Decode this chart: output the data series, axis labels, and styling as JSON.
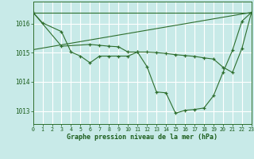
{
  "title": "Graphe pression niveau de la mer (hPa)",
  "bg_color": "#c8eae8",
  "grid_color": "#ffffff",
  "line_color": "#2d6e2d",
  "xlim": [
    0,
    23
  ],
  "ylim": [
    1012.55,
    1016.75
  ],
  "yticks": [
    1013,
    1014,
    1015,
    1016
  ],
  "xticks": [
    0,
    1,
    2,
    3,
    4,
    5,
    6,
    7,
    8,
    9,
    10,
    11,
    12,
    13,
    14,
    15,
    16,
    17,
    18,
    19,
    20,
    21,
    22,
    23
  ],
  "series1_x": [
    0,
    1,
    3,
    4,
    5,
    6,
    7,
    8,
    9,
    10,
    11,
    12,
    13,
    14,
    15,
    16,
    17,
    18,
    19,
    20,
    21,
    22,
    23
  ],
  "series1_y": [
    1016.38,
    1016.02,
    1015.72,
    1015.02,
    1014.88,
    1014.65,
    1014.88,
    1014.88,
    1014.88,
    1014.88,
    1015.02,
    1014.52,
    1013.65,
    1013.62,
    1012.92,
    1013.02,
    1013.05,
    1013.1,
    1013.52,
    1014.32,
    1015.08,
    1016.08,
    1016.38
  ],
  "series2_x": [
    0,
    3,
    6,
    7,
    8,
    9,
    10,
    11,
    12,
    13,
    14,
    15,
    16,
    17,
    18,
    19,
    20,
    21,
    22,
    23
  ],
  "series2_y": [
    1016.38,
    1015.22,
    1015.28,
    1015.25,
    1015.22,
    1015.2,
    1015.02,
    1015.02,
    1015.02,
    1015.0,
    1014.97,
    1014.93,
    1014.9,
    1014.87,
    1014.82,
    1014.78,
    1014.5,
    1014.32,
    1015.15,
    1016.38
  ],
  "series3_x": [
    0,
    23
  ],
  "series3_y": [
    1016.38,
    1016.38
  ]
}
